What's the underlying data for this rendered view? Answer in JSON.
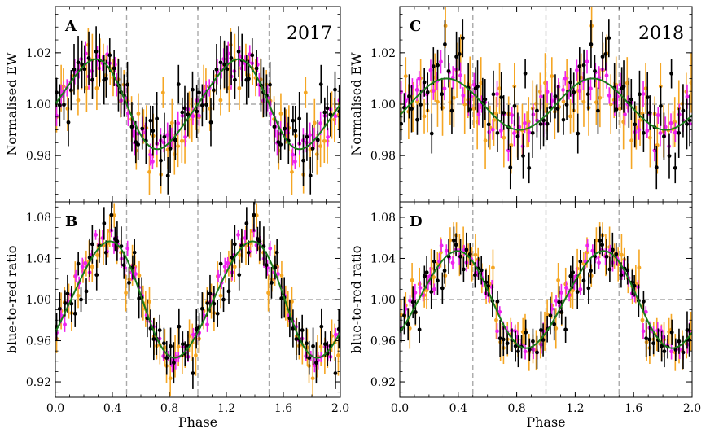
{
  "figure": {
    "description_free": true
  },
  "chart_data": [
    {
      "type": "scatter",
      "panel_label": "A",
      "year_label": "2017",
      "title": "",
      "xlabel": "",
      "ylabel": "Normalised EW",
      "xlim": [
        0.0,
        2.0
      ],
      "ylim": [
        0.962,
        1.038
      ],
      "yticks": [
        "1.02",
        "1.00",
        "0.98"
      ],
      "ytick_values": [
        1.02,
        1.0,
        0.98
      ],
      "xticks": [],
      "reference_line_y": 1.0,
      "vlines": [
        0.5,
        1.0,
        1.5
      ],
      "fit": {
        "name": "model",
        "color": "#1a7a1a",
        "mean": 1.0,
        "amplitude": 0.017,
        "peak_phase": 0.25,
        "period": 1.0,
        "shape_skew": 0.25
      },
      "series": [
        {
          "name": "orange",
          "color": "#f5a623",
          "error": 0.008,
          "scatter": 0.006,
          "seed": 11
        },
        {
          "name": "magenta",
          "color": "#ee22ee",
          "error": 0.004,
          "scatter": 0.004,
          "seed": 23
        },
        {
          "name": "black",
          "color": "#000000",
          "error": 0.008,
          "scatter": 0.007,
          "seed": 37
        }
      ],
      "points_per_cycle": 40
    },
    {
      "type": "scatter",
      "panel_label": "C",
      "year_label": "2018",
      "title": "",
      "xlabel": "",
      "ylabel": "Normalised EW",
      "xlim": [
        0.0,
        2.0
      ],
      "ylim": [
        0.962,
        1.038
      ],
      "yticks": [
        "1.02",
        "1.00",
        "0.98"
      ],
      "ytick_values": [
        1.02,
        1.0,
        0.98
      ],
      "xticks": [],
      "reference_line_y": 1.0,
      "vlines": [
        0.5,
        1.0,
        1.5
      ],
      "fit": {
        "name": "model",
        "color": "#1a7a1a",
        "mean": 1.0,
        "amplitude": 0.01,
        "peak_phase": 0.32,
        "period": 1.0,
        "shape_skew": 0.0
      },
      "series": [
        {
          "name": "orange",
          "color": "#f5a623",
          "error": 0.009,
          "scatter": 0.008,
          "seed": 41
        },
        {
          "name": "magenta",
          "color": "#ee22ee",
          "error": 0.004,
          "scatter": 0.005,
          "seed": 53
        },
        {
          "name": "black",
          "color": "#000000",
          "error": 0.008,
          "scatter": 0.008,
          "seed": 67
        }
      ],
      "points_per_cycle": 40
    },
    {
      "type": "scatter",
      "panel_label": "B",
      "year_label": "",
      "title": "",
      "xlabel": "Phase",
      "ylabel": "blue-to-red ratio",
      "xlim": [
        0.0,
        2.0
      ],
      "ylim": [
        0.905,
        1.095
      ],
      "yticks": [
        "1.08",
        "1.04",
        "1.00",
        "0.96",
        "0.92"
      ],
      "ytick_values": [
        1.08,
        1.04,
        1.0,
        0.96,
        0.92
      ],
      "xticks": [
        "0.0",
        "0.4",
        "0.8",
        "1.2",
        "1.6",
        "2.0"
      ],
      "xtick_values": [
        0.0,
        0.4,
        0.8,
        1.2,
        1.6,
        2.0
      ],
      "reference_line_y": 1.0,
      "vlines": [
        0.5,
        1.0,
        1.5
      ],
      "fit": {
        "name": "model",
        "color": "#1a7a1a",
        "mean": 1.0,
        "amplitude": 0.056,
        "peak_phase": 0.36,
        "period": 1.0,
        "shape_skew": 0.15
      },
      "series": [
        {
          "name": "orange",
          "color": "#f5a623",
          "error": 0.016,
          "scatter": 0.012,
          "seed": 71
        },
        {
          "name": "magenta",
          "color": "#ee22ee",
          "error": 0.007,
          "scatter": 0.008,
          "seed": 83
        },
        {
          "name": "black",
          "color": "#000000",
          "error": 0.016,
          "scatter": 0.013,
          "seed": 97
        }
      ],
      "points_per_cycle": 40
    },
    {
      "type": "scatter",
      "panel_label": "D",
      "year_label": "",
      "title": "",
      "xlabel": "Phase",
      "ylabel": "blue-to-red ratio",
      "xlim": [
        0.0,
        2.0
      ],
      "ylim": [
        0.905,
        1.095
      ],
      "yticks": [
        "1.08",
        "1.04",
        "1.00",
        "0.96",
        "0.92"
      ],
      "ytick_values": [
        1.08,
        1.04,
        1.0,
        0.96,
        0.92
      ],
      "xticks": [
        "0.0",
        "0.4",
        "0.8",
        "1.2",
        "1.6",
        "2.0"
      ],
      "xtick_values": [
        0.0,
        0.4,
        0.8,
        1.2,
        1.6,
        2.0
      ],
      "reference_line_y": 1.0,
      "vlines": [
        0.5,
        1.0,
        1.5
      ],
      "fit": {
        "name": "model",
        "color": "#1a7a1a",
        "mean": 1.0,
        "amplitude": 0.047,
        "peak_phase": 0.38,
        "period": 1.0,
        "shape_skew": 0.1
      },
      "series": [
        {
          "name": "orange",
          "color": "#f5a623",
          "error": 0.016,
          "scatter": 0.012,
          "seed": 101
        },
        {
          "name": "magenta",
          "color": "#ee22ee",
          "error": 0.007,
          "scatter": 0.007,
          "seed": 113
        },
        {
          "name": "black",
          "color": "#000000",
          "error": 0.014,
          "scatter": 0.011,
          "seed": 127
        }
      ],
      "points_per_cycle": 40
    }
  ],
  "colors": {
    "axis": "#000000",
    "reference_line": "#aaaaaa",
    "background": "#ffffff"
  }
}
